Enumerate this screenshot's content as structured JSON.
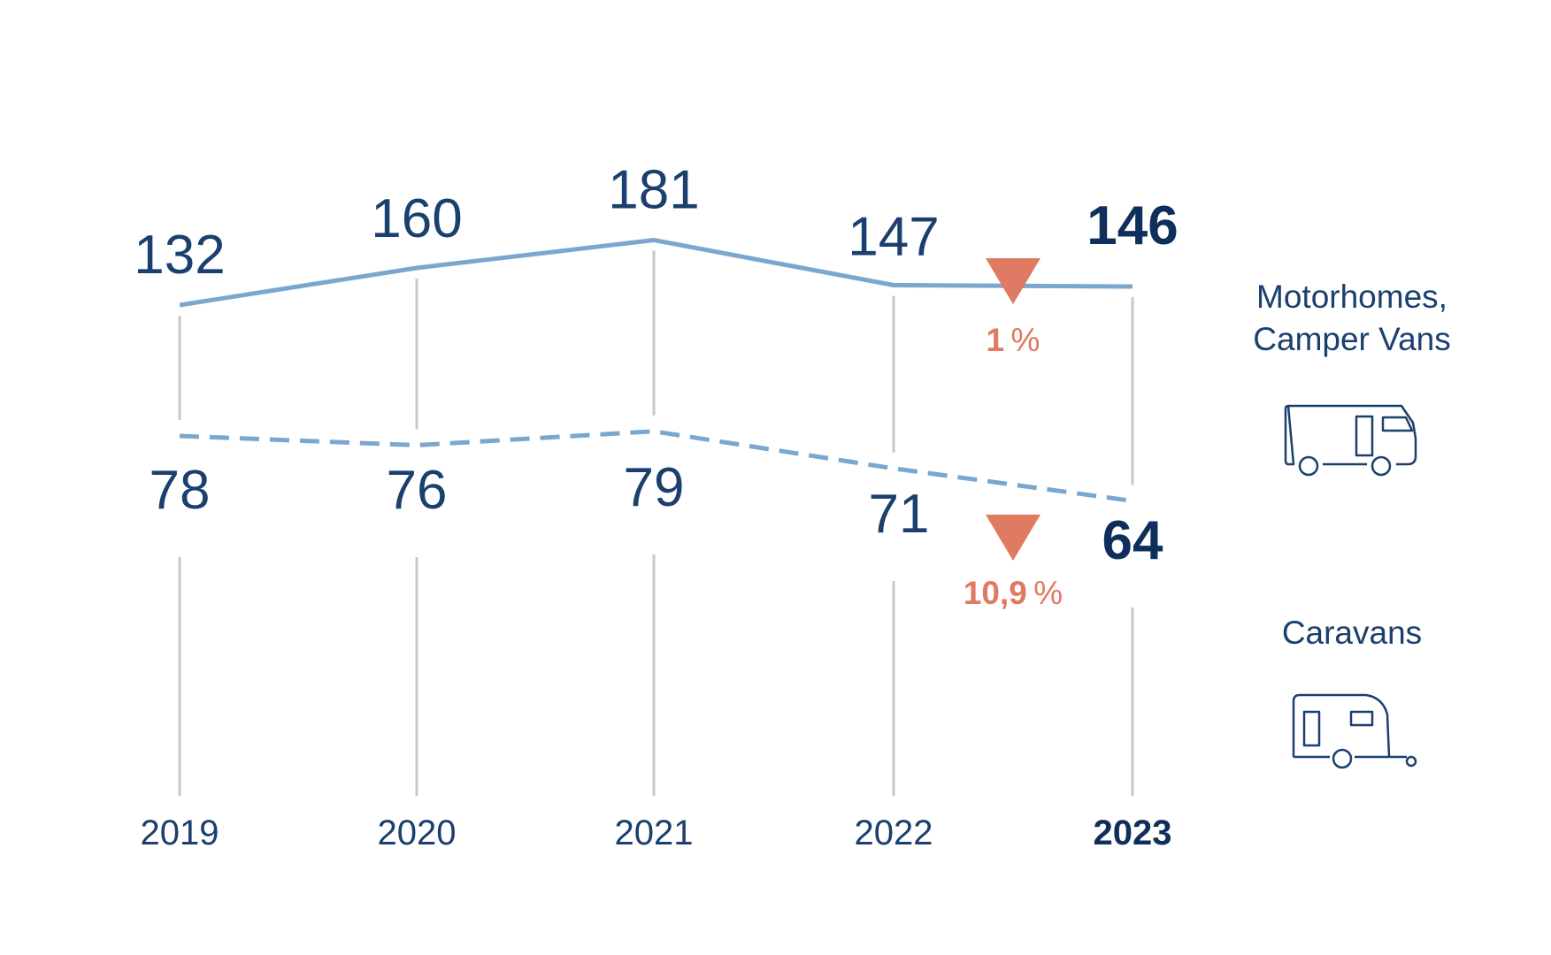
{
  "chart_data": {
    "type": "line",
    "categories": [
      "2019",
      "2020",
      "2021",
      "2022",
      "2023"
    ],
    "highlight_category": "2023",
    "series": [
      {
        "name": "Motorhomes, Camper Vans",
        "values": [
          132,
          160,
          181,
          147,
          146
        ],
        "style": "solid",
        "color": "#79a7d0",
        "icon": "motorhome-icon",
        "change": {
          "label": "1",
          "unit": "%",
          "direction": "down"
        }
      },
      {
        "name": "Caravans",
        "values": [
          78,
          76,
          79,
          71,
          64
        ],
        "style": "dashed",
        "color": "#79a7d0",
        "icon": "caravan-icon",
        "change": {
          "label": "10,9",
          "unit": "%",
          "direction": "down"
        }
      }
    ],
    "legend_placement": "right",
    "grid": "vertical lines at each year",
    "colors": {
      "text": "#1b3f6e",
      "emphasis": "#0e2f5c",
      "decrease": "#e07a62",
      "gridline": "#c8c8c8"
    }
  }
}
